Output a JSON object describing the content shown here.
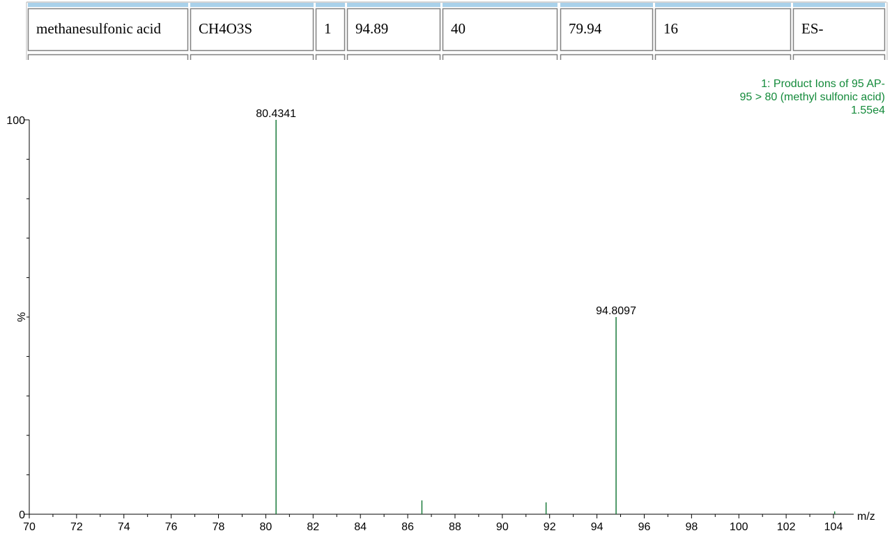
{
  "table": {
    "rows": [
      [
        "methanesulfonic acid",
        "CH4O3S",
        "1",
        "94.89",
        "40",
        "79.94",
        "16",
        "ES-"
      ]
    ]
  },
  "chart_data": {
    "type": "spectrum",
    "annotations": [
      "1: Product Ions of 95 AP-",
      "95 > 80 (methyl sulfonic acid)",
      "1.55e4"
    ],
    "annotation_color": "#138a3a",
    "y_label": "%",
    "x_label": "m/z",
    "x": [
      80.4341,
      86.6,
      91.85,
      94.8097,
      104.05
    ],
    "values": [
      100,
      3.5,
      3,
      50,
      0.7
    ],
    "labeled_peaks": [
      0,
      3
    ],
    "color": "#1a7a3a",
    "xlim": [
      70,
      104
    ],
    "xticks": [
      70,
      72,
      74,
      76,
      78,
      80,
      82,
      84,
      86,
      88,
      90,
      92,
      94,
      96,
      98,
      100,
      102,
      104
    ],
    "xminorticks": [
      71,
      73,
      75,
      77,
      79,
      81,
      83,
      85,
      87,
      89,
      91,
      93,
      95,
      97,
      99,
      101,
      103
    ],
    "ylim": [
      0,
      100
    ],
    "yticks": [
      0,
      100
    ],
    "yminorticks": [
      10,
      20,
      30,
      40,
      50,
      60,
      70,
      80,
      90
    ]
  }
}
